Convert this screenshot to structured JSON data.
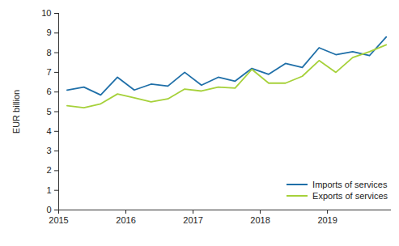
{
  "chart_data": {
    "type": "line",
    "y_label": "EUR billion",
    "x": [
      2015.125,
      2015.375,
      2015.625,
      2015.875,
      2016.125,
      2016.375,
      2016.625,
      2016.875,
      2017.125,
      2017.375,
      2017.625,
      2017.875,
      2018.125,
      2018.375,
      2018.625,
      2018.875,
      2019.125,
      2019.375,
      2019.625,
      2019.875
    ],
    "series": [
      {
        "name": "Imports of services",
        "color": "#1f6fa8",
        "values": [
          6.1,
          6.25,
          5.85,
          6.75,
          6.1,
          6.4,
          6.3,
          7.0,
          6.35,
          6.75,
          6.55,
          7.2,
          6.9,
          7.45,
          7.25,
          8.25,
          7.9,
          8.05,
          7.85,
          8.8
        ]
      },
      {
        "name": "Exports of services",
        "color": "#a6d13a",
        "values": [
          5.3,
          5.2,
          5.4,
          5.9,
          5.7,
          5.5,
          5.65,
          6.15,
          6.05,
          6.25,
          6.2,
          7.15,
          6.45,
          6.45,
          6.8,
          7.6,
          7.0,
          7.75,
          8.05,
          8.4
        ]
      }
    ],
    "xlim": [
      2015,
      2019.95
    ],
    "xticks": [
      2015,
      2016,
      2017,
      2018,
      2019
    ],
    "ylim": [
      0,
      10
    ],
    "yticks": [
      0,
      1,
      2,
      3,
      4,
      5,
      6,
      7,
      8,
      9,
      10
    ],
    "grid": false,
    "legend": "lower right"
  }
}
